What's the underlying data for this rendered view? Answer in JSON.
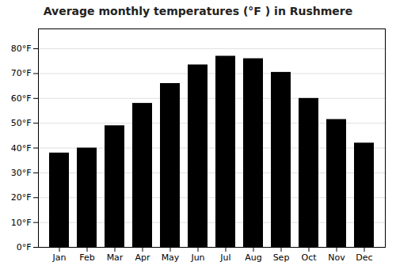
{
  "chart_data": {
    "type": "bar",
    "title": "Average monthly temperatures (°F ) in Rushmere",
    "categories": [
      "Jan",
      "Feb",
      "Mar",
      "Apr",
      "May",
      "Jun",
      "Jul",
      "Aug",
      "Sep",
      "Oct",
      "Nov",
      "Dec"
    ],
    "values": [
      38,
      40,
      49,
      58,
      66,
      73.5,
      77,
      76,
      70.5,
      60,
      51.5,
      42
    ],
    "ylim": [
      0,
      88
    ],
    "yticks": [
      {
        "value": 0,
        "label": "0°F"
      },
      {
        "value": 10,
        "label": "10°F"
      },
      {
        "value": 20,
        "label": "20°F"
      },
      {
        "value": 30,
        "label": "30°F"
      },
      {
        "value": 40,
        "label": "40°F"
      },
      {
        "value": 50,
        "label": "50°F"
      },
      {
        "value": 60,
        "label": "60°F"
      },
      {
        "value": 70,
        "label": "70°F"
      },
      {
        "value": 80,
        "label": "80°F"
      }
    ],
    "grid": true
  }
}
